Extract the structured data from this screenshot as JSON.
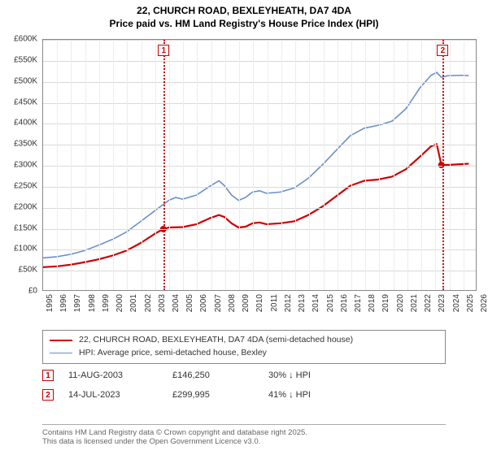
{
  "title": {
    "line1": "22, CHURCH ROAD, BEXLEYHEATH, DA7 4DA",
    "line2": "Price paid vs. HM Land Registry's House Price Index (HPI)"
  },
  "chart": {
    "type": "line",
    "ylim": [
      0,
      600000
    ],
    "ytick_step": 50000,
    "yticks": [
      "£0",
      "£50K",
      "£100K",
      "£150K",
      "£200K",
      "£250K",
      "£300K",
      "£350K",
      "£400K",
      "£450K",
      "£500K",
      "£550K",
      "£600K"
    ],
    "xlim": [
      1995,
      2026
    ],
    "xticks": [
      "1995",
      "1996",
      "1997",
      "1998",
      "1999",
      "2000",
      "2001",
      "2002",
      "2003",
      "2004",
      "2005",
      "2006",
      "2007",
      "2008",
      "2009",
      "2010",
      "2011",
      "2012",
      "2013",
      "2014",
      "2015",
      "2016",
      "2017",
      "2018",
      "2019",
      "2020",
      "2021",
      "2022",
      "2023",
      "2024",
      "2025",
      "2026"
    ],
    "grid_color": "#d9d9d9",
    "background_color": "#ffffff",
    "series": [
      {
        "name": "property",
        "label": "22, CHURCH ROAD, BEXLEYHEATH, DA7 4DA (semi-detached house)",
        "color": "#cc0000",
        "line_width": 2.2,
        "marker_color": "#cc0000",
        "markers": [
          {
            "x": 2003.61,
            "y": 146250
          },
          {
            "x": 2023.53,
            "y": 299995
          }
        ],
        "points": [
          [
            1995.0,
            55000
          ],
          [
            1996.0,
            57000
          ],
          [
            1997.0,
            61000
          ],
          [
            1998.0,
            67000
          ],
          [
            1999.0,
            74000
          ],
          [
            2000.0,
            83000
          ],
          [
            2001.0,
            95000
          ],
          [
            2002.0,
            113000
          ],
          [
            2003.0,
            135000
          ],
          [
            2003.61,
            146250
          ],
          [
            2004.0,
            150000
          ],
          [
            2005.0,
            151000
          ],
          [
            2006.0,
            158000
          ],
          [
            2007.0,
            173000
          ],
          [
            2007.6,
            180000
          ],
          [
            2008.0,
            175000
          ],
          [
            2008.5,
            160000
          ],
          [
            2009.0,
            150000
          ],
          [
            2009.5,
            152000
          ],
          [
            2010.0,
            160000
          ],
          [
            2010.5,
            162000
          ],
          [
            2011.0,
            158000
          ],
          [
            2012.0,
            160000
          ],
          [
            2013.0,
            165000
          ],
          [
            2014.0,
            180000
          ],
          [
            2015.0,
            200000
          ],
          [
            2016.0,
            225000
          ],
          [
            2017.0,
            250000
          ],
          [
            2018.0,
            262000
          ],
          [
            2019.0,
            265000
          ],
          [
            2020.0,
            272000
          ],
          [
            2021.0,
            290000
          ],
          [
            2022.0,
            320000
          ],
          [
            2022.8,
            345000
          ],
          [
            2023.2,
            350000
          ],
          [
            2023.53,
            299995
          ],
          [
            2024.0,
            300000
          ],
          [
            2025.0,
            302000
          ],
          [
            2025.5,
            303000
          ]
        ]
      },
      {
        "name": "hpi",
        "label": "HPI: Average price, semi-detached house, Bexley",
        "color": "#6a8fc9",
        "line_width": 1.6,
        "points": [
          [
            1995.0,
            77000
          ],
          [
            1996.0,
            80000
          ],
          [
            1997.0,
            86000
          ],
          [
            1998.0,
            95000
          ],
          [
            1999.0,
            108000
          ],
          [
            2000.0,
            122000
          ],
          [
            2001.0,
            140000
          ],
          [
            2002.0,
            165000
          ],
          [
            2003.0,
            190000
          ],
          [
            2004.0,
            215000
          ],
          [
            2004.5,
            222000
          ],
          [
            2005.0,
            218000
          ],
          [
            2006.0,
            228000
          ],
          [
            2007.0,
            250000
          ],
          [
            2007.6,
            262000
          ],
          [
            2008.0,
            250000
          ],
          [
            2008.5,
            228000
          ],
          [
            2009.0,
            215000
          ],
          [
            2009.5,
            222000
          ],
          [
            2010.0,
            235000
          ],
          [
            2010.5,
            238000
          ],
          [
            2011.0,
            232000
          ],
          [
            2012.0,
            235000
          ],
          [
            2013.0,
            245000
          ],
          [
            2014.0,
            268000
          ],
          [
            2015.0,
            300000
          ],
          [
            2016.0,
            335000
          ],
          [
            2017.0,
            370000
          ],
          [
            2018.0,
            388000
          ],
          [
            2019.0,
            395000
          ],
          [
            2020.0,
            405000
          ],
          [
            2021.0,
            435000
          ],
          [
            2022.0,
            485000
          ],
          [
            2022.8,
            515000
          ],
          [
            2023.2,
            522000
          ],
          [
            2023.53,
            510000
          ],
          [
            2024.0,
            514000
          ],
          [
            2025.0,
            515000
          ],
          [
            2025.5,
            514000
          ]
        ]
      }
    ],
    "events": [
      {
        "id": "1",
        "color": "#cc0000",
        "x": 2003.61
      },
      {
        "id": "2",
        "color": "#cc0000",
        "x": 2023.53
      }
    ]
  },
  "legend": {
    "items": [
      {
        "label": "22, CHURCH ROAD, BEXLEYHEATH, DA7 4DA (semi-detached house)",
        "color": "#cc0000",
        "width": 2.2
      },
      {
        "label": "HPI: Average price, semi-detached house, Bexley",
        "color": "#6a8fc9",
        "width": 1.6
      }
    ]
  },
  "event_table": [
    {
      "id": "1",
      "color": "#cc0000",
      "date": "11-AUG-2003",
      "price": "£146,250",
      "pct": "30% ↓ HPI"
    },
    {
      "id": "2",
      "color": "#cc0000",
      "date": "14-JUL-2023",
      "price": "£299,995",
      "pct": "41% ↓ HPI"
    }
  ],
  "footer": {
    "line1": "Contains HM Land Registry data © Crown copyright and database right 2025.",
    "line2": "This data is licensed under the Open Government Licence v3.0."
  }
}
